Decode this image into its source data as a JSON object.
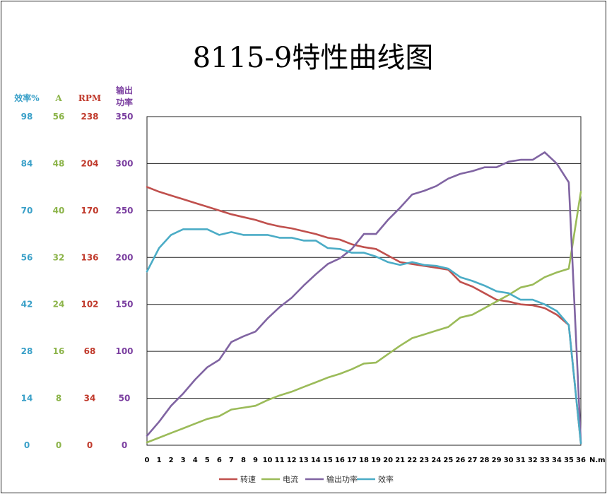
{
  "chart_data": {
    "type": "line",
    "title": "8115-9特性曲线图",
    "x_unit": "N.m",
    "x": [
      0,
      1,
      2,
      3,
      4,
      5,
      6,
      7,
      8,
      9,
      10,
      11,
      12,
      13,
      14,
      15,
      16,
      17,
      18,
      19,
      20,
      21,
      22,
      23,
      24,
      25,
      26,
      27,
      28,
      29,
      30,
      31,
      32,
      33,
      34,
      35,
      36
    ],
    "xlim": [
      0,
      36
    ],
    "grid": true,
    "legend_position": "bottom",
    "axes": [
      {
        "id": "eff",
        "label": "效率%",
        "ticks": [
          "98",
          "84",
          "70",
          "56",
          "42",
          "28",
          "14",
          "0"
        ],
        "color": "#3AA0C8"
      },
      {
        "id": "amp",
        "label": "A",
        "ticks": [
          "56",
          "48",
          "40",
          "32",
          "24",
          "16",
          "8",
          "0"
        ],
        "color": "#8CB44A"
      },
      {
        "id": "rpm",
        "label": "RPM",
        "ticks": [
          "238",
          "204",
          "170",
          "136",
          "102",
          "68",
          "34",
          "0"
        ],
        "color": "#C0392B"
      },
      {
        "id": "pwr",
        "label_line1": "输出",
        "label_line2": "功率",
        "ticks": [
          "350",
          "300",
          "250",
          "200",
          "150",
          "100",
          "50",
          "0"
        ],
        "color": "#7B3FA0"
      }
    ],
    "ylim": [
      0,
      350
    ],
    "series": [
      {
        "name": "转速",
        "color": "#C0504D",
        "values": [
          275,
          270,
          266,
          262,
          258,
          254,
          250,
          246,
          243,
          240,
          236,
          233,
          231,
          228,
          225,
          221,
          219,
          214,
          211,
          209,
          202,
          195,
          193,
          191,
          189,
          187,
          174,
          169,
          162,
          155,
          153,
          150,
          149,
          146,
          139,
          128,
          2
        ]
      },
      {
        "name": "电流",
        "color": "#9BBB59",
        "values": [
          3,
          8,
          13,
          18,
          23,
          28,
          31,
          38,
          40,
          42,
          48,
          53,
          57,
          62,
          67,
          72,
          76,
          81,
          87,
          88,
          97,
          106,
          114,
          118,
          122,
          126,
          136,
          139,
          146,
          153,
          160,
          168,
          171,
          179,
          184,
          188,
          270
        ]
      },
      {
        "name": "输出功率",
        "color": "#8064A2",
        "values": [
          10,
          25,
          42,
          55,
          70,
          83,
          91,
          110,
          116,
          121,
          135,
          147,
          157,
          170,
          182,
          193,
          199,
          209,
          225,
          225,
          240,
          253,
          267,
          271,
          276,
          284,
          289,
          292,
          296,
          296,
          302,
          304,
          304,
          312,
          300,
          280,
          3
        ]
      },
      {
        "name": "效率",
        "color": "#4BACC6",
        "values": [
          185,
          210,
          224,
          230,
          230,
          230,
          224,
          227,
          224,
          224,
          224,
          221,
          221,
          218,
          218,
          210,
          209,
          205,
          205,
          201,
          195,
          192,
          195,
          192,
          191,
          188,
          179,
          175,
          170,
          164,
          162,
          155,
          155,
          150,
          143,
          128,
          2
        ]
      }
    ]
  }
}
